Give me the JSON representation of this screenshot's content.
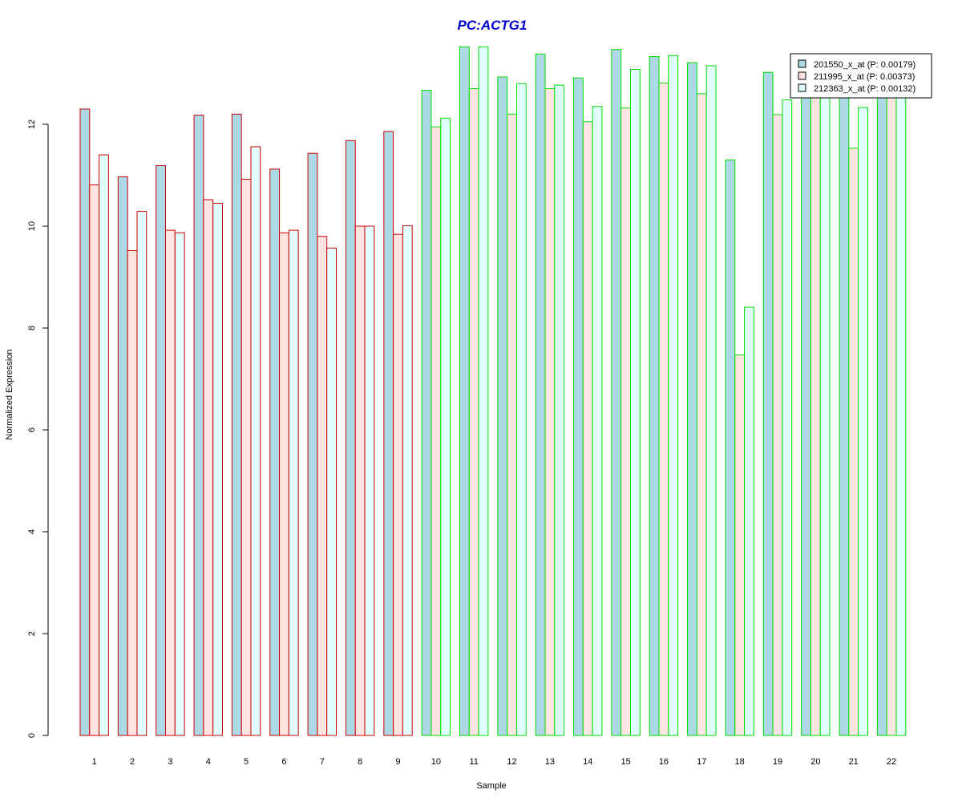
{
  "chart_data": {
    "type": "bar",
    "title": "PC:ACTG1",
    "title_color": "#0000CC",
    "xlabel": "Sample",
    "ylabel": "Normalized Expression",
    "ylim": [
      0,
      13.6
    ],
    "yticks": [
      "0",
      "2",
      "4",
      "6",
      "8",
      "10",
      "12"
    ],
    "grid": false,
    "legend_position": "top-right",
    "categories": [
      "1",
      "2",
      "3",
      "4",
      "5",
      "6",
      "7",
      "8",
      "9",
      "10",
      "11",
      "12",
      "13",
      "14",
      "15",
      "16",
      "17",
      "18",
      "19",
      "20",
      "21",
      "22"
    ],
    "group_outline_colors": [
      "#CC0000",
      "#CC0000",
      "#CC0000",
      "#CC0000",
      "#CC0000",
      "#CC0000",
      "#CC0000",
      "#CC0000",
      "#CC0000",
      "#00DD00",
      "#00DD00",
      "#00DD00",
      "#00DD00",
      "#00DD00",
      "#00DD00",
      "#00DD00",
      "#00DD00",
      "#00DD00",
      "#00DD00",
      "#00DD00",
      "#00DD00",
      "#00DD00"
    ],
    "series": [
      {
        "name": "201550_x_at (P: 0.00179)",
        "fill": "#ADD8E6",
        "values": [
          12.3,
          10.97,
          11.19,
          12.18,
          12.2,
          11.12,
          11.43,
          11.68,
          11.86,
          12.67,
          13.52,
          12.93,
          13.38,
          12.91,
          13.47,
          13.33,
          13.21,
          11.3,
          13.02,
          13.11,
          13.06,
          12.97
        ]
      },
      {
        "name": "211995_x_at (P: 0.00373)",
        "fill": "#FFE4E1",
        "values": [
          10.81,
          9.52,
          9.92,
          10.52,
          10.92,
          9.87,
          9.8,
          10.0,
          9.84,
          11.95,
          12.7,
          12.2,
          12.7,
          12.05,
          12.32,
          12.81,
          12.6,
          7.47,
          12.19,
          12.9,
          11.53,
          12.95
        ]
      },
      {
        "name": "212363_x_at (P: 0.00132)",
        "fill": "#E0FFFF",
        "values": [
          11.4,
          10.29,
          9.87,
          10.45,
          11.56,
          9.92,
          9.57,
          10.0,
          10.01,
          12.12,
          13.52,
          12.8,
          12.77,
          12.35,
          13.08,
          13.35,
          13.15,
          8.41,
          12.48,
          12.9,
          12.33,
          13.0
        ]
      }
    ],
    "legend_overlaps_fill": "#F5E6DC"
  }
}
